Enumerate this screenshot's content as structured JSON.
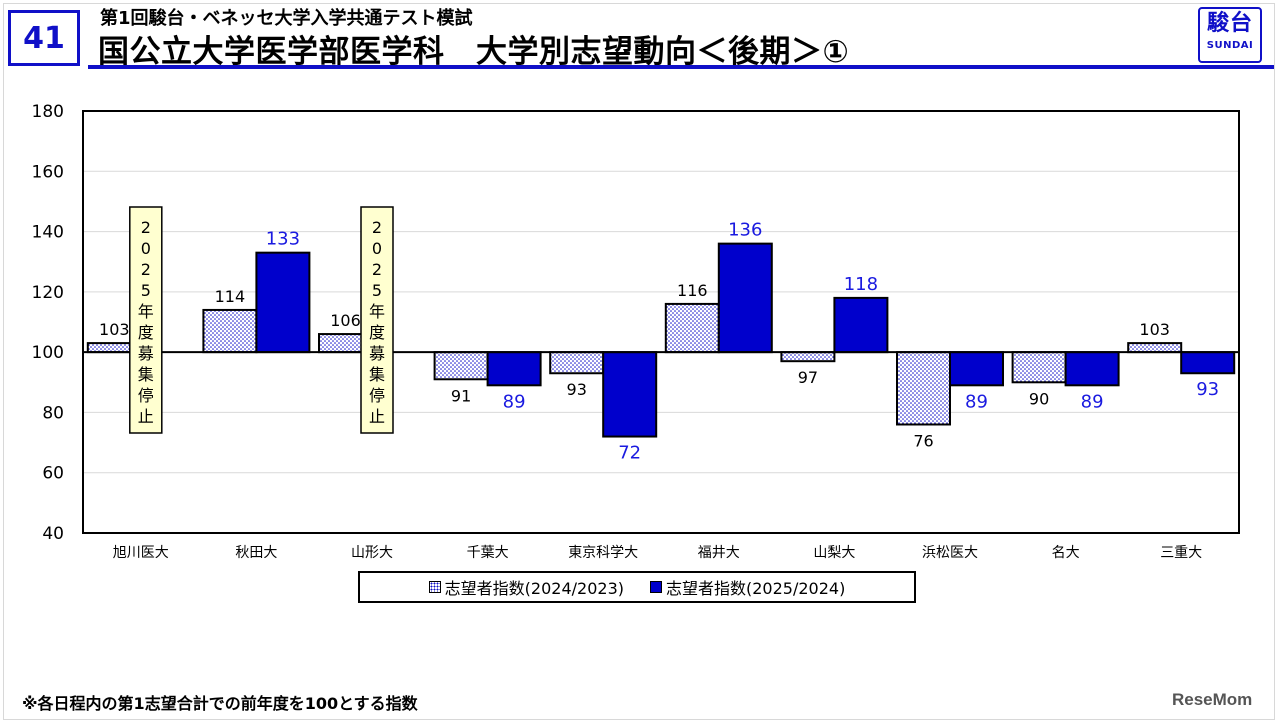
{
  "header": {
    "page_number": "41",
    "subtitle": "第1回駿台・ベネッセ大学入学共通テスト模試",
    "title": "国公立大学医学部医学科　大学別志望動向＜後期＞①",
    "logo_main": "駿台",
    "logo_sub": "SUNDAI"
  },
  "colors": {
    "accent": "#1010c8",
    "series_2025": "#0000cc",
    "dotted_fill": "#1010c8",
    "notice_box": "#ffffd0"
  },
  "chart_data": {
    "type": "bar",
    "baseline": 100,
    "ylim": [
      40,
      180
    ],
    "yticks": [
      40,
      60,
      80,
      100,
      120,
      140,
      160,
      180
    ],
    "grid": true,
    "legend_position": "bottom",
    "categories": [
      "旭川医大",
      "秋田大",
      "山形大",
      "千葉大",
      "東京科学大",
      "福井大",
      "山梨大",
      "浜松医大",
      "名大",
      "三重大"
    ],
    "series": [
      {
        "name": "志望者指数(2024/2023)",
        "pattern": "dotted",
        "values": [
          103,
          114,
          106,
          91,
          93,
          116,
          97,
          76,
          90,
          103
        ]
      },
      {
        "name": "志望者指数(2025/2024)",
        "pattern": "solid",
        "values": [
          null,
          133,
          null,
          89,
          72,
          136,
          118,
          89,
          89,
          93
        ]
      }
    ],
    "annotations": [
      {
        "category": "旭川医大",
        "text": "2025年度募集停止"
      },
      {
        "category": "山形大",
        "text": "2025年度募集停止"
      }
    ]
  },
  "footnote": "※各日程内の第1志望合計での前年度を100とする指数",
  "watermark": "ReseMom"
}
